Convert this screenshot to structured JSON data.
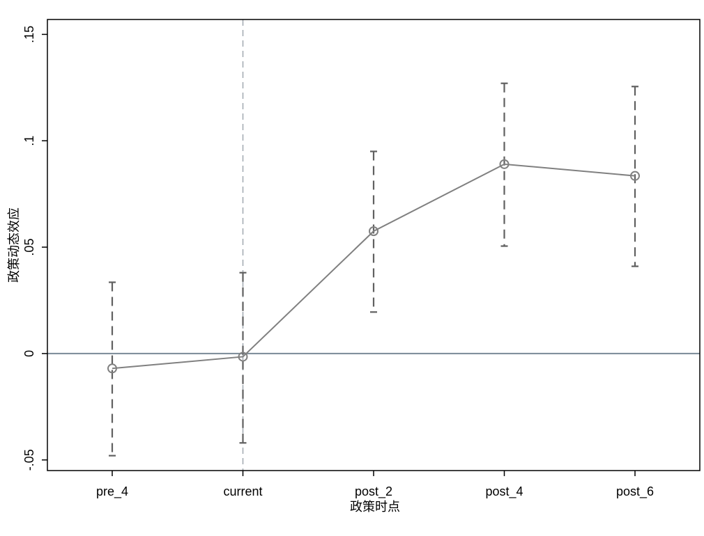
{
  "colors": {
    "background": "#ffffff",
    "frame": "#000000",
    "series_line": "#808080",
    "error_bar": "#606060",
    "zero_line": "#7a8a96",
    "reference_line": "#a0a8b0"
  },
  "chart_data": {
    "type": "line",
    "title": "",
    "xlabel": "政策时点",
    "ylabel": "政策动态效应",
    "categories": [
      "pre_4",
      "current",
      "post_2",
      "post_4",
      "post_6"
    ],
    "series": [
      {
        "values": [
          -0.007,
          -0.0015,
          0.0575,
          0.089,
          0.0835
        ],
        "ci_low": [
          -0.048,
          -0.042,
          0.0195,
          0.0505,
          0.041
        ],
        "ci_high": [
          0.0335,
          0.038,
          0.095,
          0.127,
          0.1255
        ]
      }
    ],
    "ylim": [
      -0.055,
      0.157
    ],
    "yticks": [
      -0.05,
      0,
      0.05,
      0.1,
      0.15
    ],
    "ytick_labels": [
      "-.05",
      "0",
      ".05",
      ".1",
      ".15"
    ],
    "reference_lines": {
      "horizontal_y": 0,
      "vertical_category": "current"
    },
    "marker": "hollow-circle",
    "error_bar_style": "dashed",
    "grid": false,
    "legend": "none"
  }
}
